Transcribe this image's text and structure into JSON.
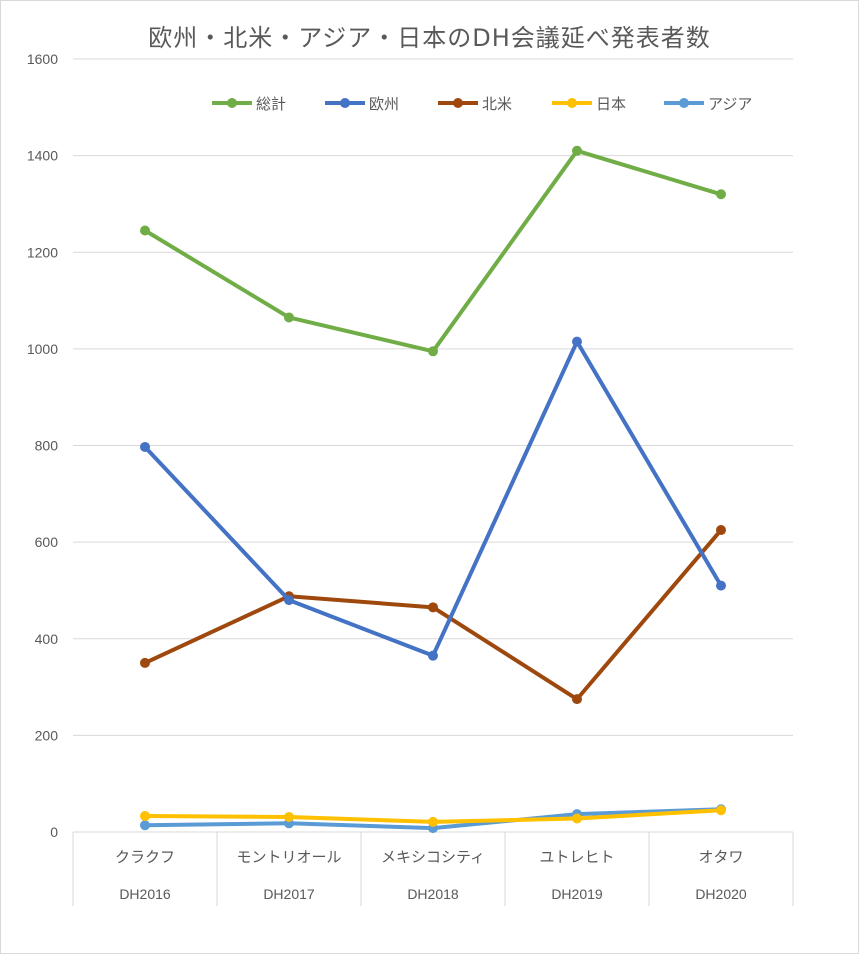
{
  "chart_data": {
    "type": "line",
    "title": "欧州・北米・アジア・日本のDH会議延べ発表者数",
    "xlabel": "",
    "ylabel": "",
    "ylim": [
      0,
      1600
    ],
    "yticks": [
      0,
      200,
      400,
      600,
      800,
      1000,
      1200,
      1400,
      1600
    ],
    "categories": [
      "クラクフ",
      "モントリオール",
      "メキシコシティ",
      "ユトレヒト",
      "オタワ"
    ],
    "events": [
      "DH2016",
      "DH2017",
      "DH2018",
      "DH2019",
      "DH2020"
    ],
    "grid": true,
    "legend_position": "top",
    "series": [
      {
        "name": "総計",
        "color": "#70ad47",
        "values": [
          1245,
          1065,
          995,
          1410,
          1320
        ]
      },
      {
        "name": "欧州",
        "color": "#4472c4",
        "values": [
          797,
          480,
          365,
          1015,
          510
        ]
      },
      {
        "name": "北米",
        "color": "#9e480e",
        "values": [
          350,
          488,
          465,
          275,
          625
        ]
      },
      {
        "name": "日本",
        "color": "#ffc000",
        "values": [
          33,
          31,
          21,
          28,
          45
        ]
      },
      {
        "name": "アジア",
        "color": "#5b9bd5",
        "values": [
          14,
          18,
          8,
          37,
          47
        ]
      }
    ]
  }
}
